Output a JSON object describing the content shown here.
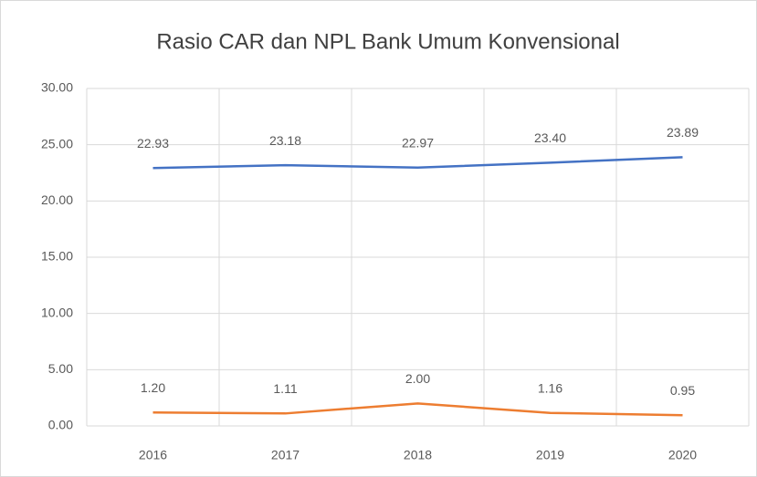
{
  "chart_data": {
    "type": "line",
    "title": "Rasio CAR dan NPL Bank Umum Konvensional",
    "categories": [
      "2016",
      "2017",
      "2018",
      "2019",
      "2020"
    ],
    "series": [
      {
        "color": "#4472c4",
        "values": [
          22.93,
          23.18,
          22.97,
          23.4,
          23.89
        ],
        "value_labels": [
          "22.93",
          "23.18",
          "22.97",
          "23.40",
          "23.89"
        ]
      },
      {
        "color": "#ed7d31",
        "values": [
          1.2,
          1.11,
          2.0,
          1.16,
          0.95
        ],
        "value_labels": [
          "1.20",
          "1.11",
          "2.00",
          "1.16",
          "0.95"
        ]
      }
    ],
    "ylim": [
      0,
      30
    ],
    "yticks": [
      {
        "value": 0,
        "label": "0.00"
      },
      {
        "value": 5,
        "label": "5.00"
      },
      {
        "value": 10,
        "label": "10.00"
      },
      {
        "value": 15,
        "label": "15.00"
      },
      {
        "value": 20,
        "label": "20.00"
      },
      {
        "value": 25,
        "label": "25.00"
      },
      {
        "value": 30,
        "label": "30.00"
      }
    ],
    "grid": true
  }
}
